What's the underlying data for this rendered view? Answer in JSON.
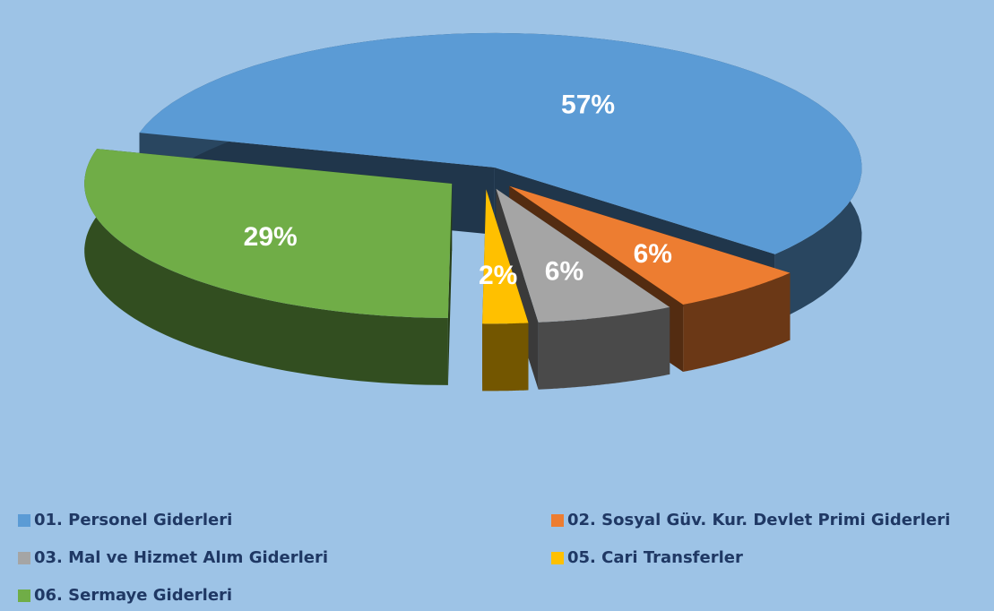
{
  "chart_data": {
    "type": "pie3d",
    "categories": [
      "01. Personel Giderleri",
      "02. Sosyal Güv. Kur. Devlet Primi Giderleri",
      "03. Mal ve Hizmet Alım Giderleri",
      "05. Cari Transferler",
      "06. Sermaye Giderleri"
    ],
    "values": [
      57,
      6,
      6,
      2,
      29
    ],
    "value_labels": [
      "57%",
      "6%",
      "6%",
      "2%",
      "29%"
    ],
    "colors": [
      "#5b9bd5",
      "#ed7d31",
      "#a5a5a5",
      "#ffc000",
      "#70ad47"
    ]
  }
}
